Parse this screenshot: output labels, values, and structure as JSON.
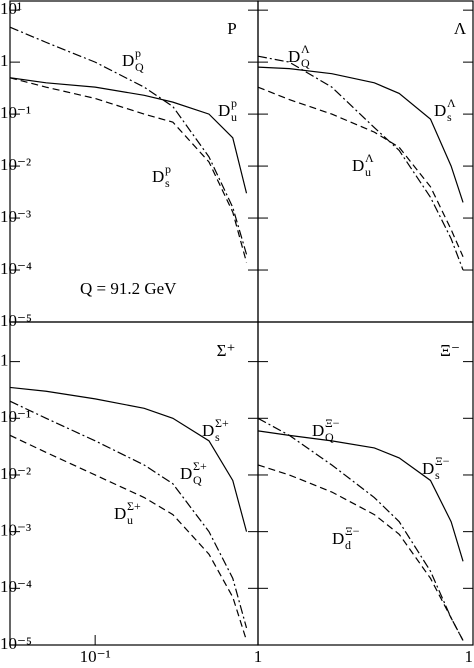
{
  "chart_data": [
    {
      "type": "line",
      "title": "P",
      "annotation": "Q = 91.2 GeV",
      "log_x": true,
      "log_y": true,
      "xlim": [
        0.03,
        1
      ],
      "ylim": [
        1e-05,
        15
      ],
      "yticks": [
        {
          "value": 10,
          "label": "10¹"
        },
        1,
        {
          "value": 0.1,
          "label": "10⁻¹"
        },
        {
          "value": 0.01,
          "label": "10⁻²"
        },
        {
          "value": 0.001,
          "label": "10⁻³"
        },
        {
          "value": 0.0001,
          "label": "10⁻⁴"
        },
        {
          "value": 1e-05,
          "label": "10⁻⁵"
        }
      ],
      "x": [
        0.03,
        0.05,
        0.1,
        0.2,
        0.3,
        0.5,
        0.7,
        0.85
      ],
      "series": [
        {
          "name": "D",
          "sub": "Q",
          "sup": "p",
          "color": "#000",
          "dash": "dashdot",
          "values": [
            4.7,
            2.4,
            1,
            0.33,
            0.14,
            0.015,
            0.0016,
            0.0002
          ]
        },
        {
          "name": "D",
          "sub": "u",
          "sup": "p",
          "color": "#000",
          "dash": "solid",
          "values": [
            0.5,
            0.4,
            0.33,
            0.23,
            0.17,
            0.1,
            0.035,
            0.003
          ]
        },
        {
          "name": "D",
          "sub": "s",
          "sup": "p",
          "color": "#000",
          "dash": "dashed",
          "values": [
            0.5,
            0.33,
            0.2,
            0.1,
            0.07,
            0.012,
            0.0013,
            0.00014
          ]
        }
      ]
    },
    {
      "type": "line",
      "title": "Λ",
      "log_x": true,
      "log_y": true,
      "xlim": [
        0.03,
        1
      ],
      "ylim": [
        1e-05,
        15
      ],
      "yticks": [
        10,
        1,
        0.1,
        0.01,
        0.001,
        0.0001
      ],
      "x": [
        0.03,
        0.05,
        0.1,
        0.2,
        0.3,
        0.5,
        0.7,
        0.85
      ],
      "series": [
        {
          "name": "D",
          "sub": "Q",
          "sup": "Λ",
          "color": "#000",
          "dash": "dashdot",
          "values": [
            1.3,
            1,
            0.33,
            0.055,
            0.02,
            0.0025,
            0.0004,
            0.0001
          ]
        },
        {
          "name": "D",
          "sub": "s",
          "sup": "Λ",
          "color": "#000",
          "dash": "solid",
          "values": [
            0.8,
            0.75,
            0.6,
            0.4,
            0.25,
            0.08,
            0.01,
            0.002
          ]
        },
        {
          "name": "D",
          "sub": "u",
          "sup": "Λ",
          "color": "#000",
          "dash": "dashed",
          "values": [
            0.33,
            0.19,
            0.1,
            0.045,
            0.023,
            0.004,
            0.0006,
            0.00018
          ]
        }
      ]
    },
    {
      "type": "line",
      "title": "Σ⁺",
      "log_x": true,
      "log_y": true,
      "xlim": [
        0.03,
        1
      ],
      "ylim": [
        1e-05,
        5
      ],
      "yticks": [
        1,
        {
          "value": 0.1,
          "label": "10⁻¹"
        },
        {
          "value": 0.01,
          "label": "10⁻²"
        },
        {
          "value": 0.001,
          "label": "10⁻³"
        },
        {
          "value": 0.0001,
          "label": "10⁻⁴"
        },
        {
          "value": 1e-05,
          "label": "10⁻⁵"
        }
      ],
      "xticks": [
        {
          "value": 0.1,
          "label": "10⁻¹"
        },
        1
      ],
      "x": [
        0.03,
        0.05,
        0.1,
        0.2,
        0.3,
        0.5,
        0.7,
        0.85
      ],
      "series": [
        {
          "name": "D",
          "sub": "s",
          "sup": "Σ+",
          "color": "#000",
          "dash": "solid",
          "values": [
            0.35,
            0.3,
            0.22,
            0.15,
            0.1,
            0.04,
            0.008,
            0.001
          ]
        },
        {
          "name": "D",
          "sub": "Q",
          "sup": "Σ+",
          "color": "#000",
          "dash": "dashdot",
          "values": [
            0.2,
            0.1,
            0.04,
            0.015,
            0.007,
            0.001,
            0.00015,
            2e-05
          ]
        },
        {
          "name": "D",
          "sub": "u",
          "sup": "Σ+",
          "color": "#000",
          "dash": "dashed",
          "values": [
            0.05,
            0.025,
            0.01,
            0.004,
            0.002,
            0.0004,
            7e-05,
            1.2e-05
          ]
        }
      ]
    },
    {
      "type": "line",
      "title": "Ξ⁻",
      "log_x": true,
      "log_y": true,
      "xlim": [
        0.03,
        1
      ],
      "ylim": [
        1e-05,
        5
      ],
      "yticks": [
        1,
        0.1,
        0.01,
        0.001,
        0.0001,
        1e-05
      ],
      "xticks": [
        1
      ],
      "x": [
        0.03,
        0.05,
        0.1,
        0.2,
        0.3,
        0.5,
        0.7,
        0.85
      ],
      "series": [
        {
          "name": "D",
          "sub": "Q",
          "sup": "Ξ−",
          "color": "#000",
          "dash": "dashdot",
          "values": [
            0.1,
            0.05,
            0.015,
            0.004,
            0.0015,
            0.0002,
            3e-05,
            1.2e-05
          ]
        },
        {
          "name": "D",
          "sub": "s",
          "sup": "Ξ−",
          "color": "#000",
          "dash": "solid",
          "values": [
            0.06,
            0.05,
            0.04,
            0.03,
            0.02,
            0.008,
            0.0015,
            0.0003
          ]
        },
        {
          "name": "D",
          "sub": "d",
          "sup": "Ξ−",
          "color": "#000",
          "dash": "dashed",
          "values": [
            0.015,
            0.01,
            0.005,
            0.002,
            0.0009,
            0.00015,
            3e-05,
            1.2e-05
          ]
        }
      ]
    }
  ]
}
